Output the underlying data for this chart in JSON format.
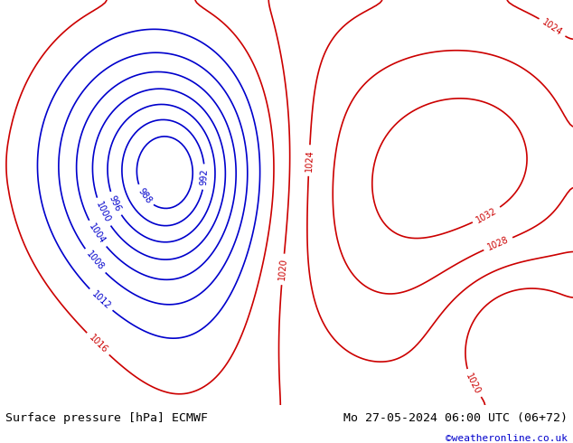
{
  "title_left": "Surface pressure [hPa] ECMWF",
  "title_right": "Mo 27-05-2024 06:00 UTC (06+72)",
  "copyright": "©weatheronline.co.uk",
  "ocean_color": "#e8e8e8",
  "land_color": "#b5d9a0",
  "coast_color": "#808080",
  "border_color": "#a0a0a0",
  "fig_width": 6.34,
  "fig_height": 4.9,
  "font_size_title": 9.5,
  "font_size_copyright": 8,
  "isobar_black": "#000000",
  "isobar_blue": "#0000cc",
  "isobar_red": "#cc0000",
  "label_fontsize": 7
}
